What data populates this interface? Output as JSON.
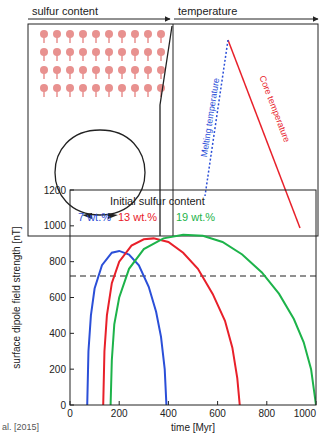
{
  "diagram": {
    "headers": [
      "sulfur content",
      "temperature"
    ],
    "curve_labels": [
      "Melting temperature",
      "Core temperature"
    ]
  },
  "chart_data": {
    "type": "line",
    "ylabel": "surface dipole field strength [nT]",
    "xlabel": "time [Myr]",
    "annotations": [
      "Initial sulfur content",
      "al. [2015]"
    ],
    "xlim": [
      0,
      1000
    ],
    "ylim": [
      0,
      1200
    ],
    "xticks": [
      0,
      200,
      400,
      600,
      800,
      1000
    ],
    "yticks": [
      0,
      200,
      400,
      600,
      800,
      1000,
      1200
    ],
    "threshold": 720,
    "series": [
      {
        "name": "7 wt.%",
        "color": "#2b4fd8",
        "x": [
          70,
          75,
          85,
          100,
          130,
          170,
          200,
          240,
          280,
          320,
          350,
          370,
          385,
          392
        ],
        "values": [
          0,
          300,
          500,
          650,
          780,
          850,
          860,
          840,
          780,
          660,
          520,
          380,
          200,
          0
        ]
      },
      {
        "name": "13 wt.%",
        "color": "#e8202a",
        "x": [
          135,
          140,
          150,
          170,
          200,
          250,
          300,
          340,
          400,
          460,
          520,
          580,
          630,
          660,
          680,
          690
        ],
        "values": [
          0,
          300,
          500,
          680,
          800,
          890,
          925,
          930,
          910,
          850,
          760,
          620,
          470,
          320,
          150,
          0
        ]
      },
      {
        "name": "19 wt.%",
        "color": "#1db34a",
        "x": [
          165,
          170,
          180,
          200,
          240,
          300,
          380,
          460,
          540,
          620,
          700,
          780,
          850,
          910,
          950,
          980,
          1000
        ],
        "values": [
          0,
          250,
          450,
          600,
          760,
          870,
          930,
          950,
          945,
          910,
          840,
          740,
          620,
          480,
          350,
          200,
          0
        ]
      }
    ]
  }
}
